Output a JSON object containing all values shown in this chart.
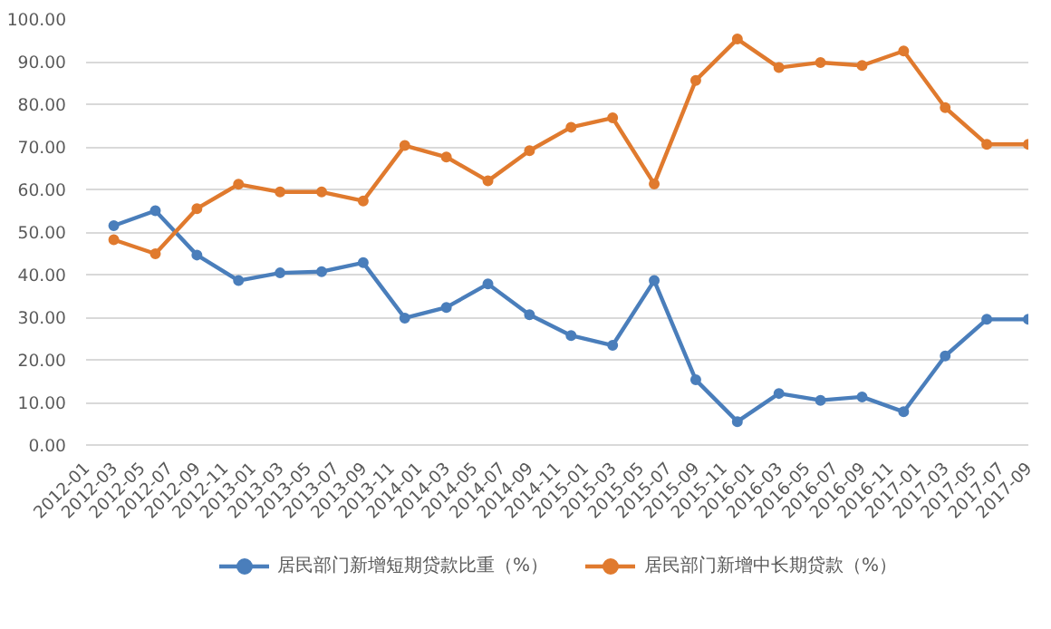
{
  "chart_data": {
    "type": "line",
    "x": [
      "2012-03",
      "2012-06",
      "2012-09",
      "2012-12",
      "2013-03",
      "2013-06",
      "2013-09",
      "2013-12",
      "2014-03",
      "2014-06",
      "2014-09",
      "2014-12",
      "2015-03",
      "2015-06",
      "2015-09",
      "2015-12",
      "2016-03",
      "2016-06",
      "2016-09",
      "2016-12",
      "2017-03",
      "2017-06",
      "2017-09"
    ],
    "series": [
      {
        "name": "居民部门新增短期贷款比重（%）",
        "color": "#4a7ebb",
        "values": [
          51.5,
          55.0,
          44.6,
          38.6,
          40.4,
          40.7,
          42.8,
          29.8,
          32.3,
          37.8,
          30.6,
          25.7,
          23.4,
          38.6,
          15.3,
          5.5,
          12.1,
          10.5,
          11.3,
          7.8,
          20.9,
          29.5,
          29.5
        ]
      },
      {
        "name": "居民部门新增中长期贷款（%）",
        "color": "#e07a2e",
        "values": [
          48.2,
          44.9,
          55.5,
          61.2,
          59.4,
          59.4,
          57.3,
          70.3,
          67.6,
          62.0,
          69.1,
          74.6,
          76.8,
          61.3,
          85.6,
          95.3,
          88.6,
          89.8,
          89.1,
          92.5,
          79.2,
          70.6,
          70.6
        ]
      }
    ],
    "xlim": [
      "2012-01",
      "2017-09"
    ],
    "xticks": [
      "2012-01",
      "2012-03",
      "2012-05",
      "2012-07",
      "2012-09",
      "2012-11",
      "2013-01",
      "2013-03",
      "2013-05",
      "2013-07",
      "2013-09",
      "2013-11",
      "2014-01",
      "2014-03",
      "2014-05",
      "2014-07",
      "2014-09",
      "2014-11",
      "2015-01",
      "2015-03",
      "2015-05",
      "2015-07",
      "2015-09",
      "2015-11",
      "2016-01",
      "2016-03",
      "2016-05",
      "2016-07",
      "2016-09",
      "2016-11",
      "2017-01",
      "2017-03",
      "2017-05",
      "2017-07",
      "2017-09"
    ],
    "ylim": [
      0,
      100
    ],
    "yticks": [
      {
        "value": 0,
        "label": "0.00"
      },
      {
        "value": 10,
        "label": "10.00"
      },
      {
        "value": 20,
        "label": "20.00"
      },
      {
        "value": 30,
        "label": "30.00"
      },
      {
        "value": 40,
        "label": "40.00"
      },
      {
        "value": 50,
        "label": "50.00"
      },
      {
        "value": 60,
        "label": "60.00"
      },
      {
        "value": 70,
        "label": "70.00"
      },
      {
        "value": 80,
        "label": "80.00"
      },
      {
        "value": 90,
        "label": "90.00"
      },
      {
        "value": 100,
        "label": "100.00"
      }
    ],
    "grid": "y",
    "legend": "bottom",
    "marker": "circle",
    "line_style": "solid"
  }
}
